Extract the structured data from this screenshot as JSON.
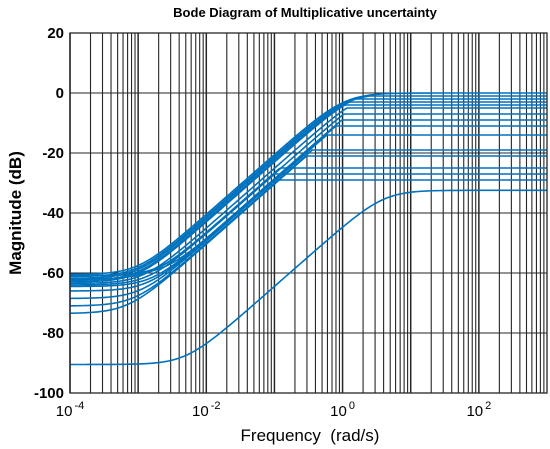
{
  "chart_data": {
    "type": "line",
    "title": "Bode Diagram of Multiplicative uncertainty",
    "xlabel": "Frequency  (rad/s)",
    "ylabel": "Magnitude (dB)",
    "x_scale": "log",
    "xlim": [
      0.0001,
      1000
    ],
    "ylim": [
      -100,
      20
    ],
    "x_ticks": [
      {
        "base": "10",
        "exp": "-4"
      },
      {
        "base": "10",
        "exp": "-2"
      },
      {
        "base": "10",
        "exp": "0"
      },
      {
        "base": "10",
        "exp": "2"
      }
    ],
    "x_tick_values": [
      0.0001,
      0.01,
      1,
      100
    ],
    "y_ticks": [
      "20",
      "0",
      "-20",
      "-40",
      "-60",
      "-80",
      "-100"
    ],
    "y_tick_values": [
      20,
      0,
      -20,
      -40,
      -60,
      -80,
      -100
    ],
    "grid": true,
    "series_color": "#0072BD",
    "grid_color": "#262626",
    "series": [
      {
        "low": -60.5,
        "high": 0,
        "wz": 0.001,
        "wp": 1.06
      },
      {
        "low": -61.2,
        "high": -1,
        "wz": 0.001,
        "wp": 1.12
      },
      {
        "low": -61.8,
        "high": -2,
        "wz": 0.001,
        "wp": 1.26
      },
      {
        "low": -62.5,
        "high": -3,
        "wz": 0.001,
        "wp": 1.41
      },
      {
        "low": -63.0,
        "high": -4,
        "wz": 0.001,
        "wp": 1.58
      },
      {
        "low": -63.5,
        "high": -5,
        "wz": 0.0012,
        "wp": 2.1
      },
      {
        "low": -64.0,
        "high": -7,
        "wz": 0.0014,
        "wp": 3.1
      },
      {
        "low": -64.5,
        "high": -9,
        "wz": 0.0016,
        "wp": 4.5
      },
      {
        "low": -66.0,
        "high": -11,
        "wz": 0.0014,
        "wp": 5.0
      },
      {
        "low": -68.5,
        "high": -14,
        "wz": 0.0011,
        "wp": 5.0
      },
      {
        "low": -71.0,
        "high": -19,
        "wz": 0.0009,
        "wp": 5.0
      },
      {
        "low": -73.5,
        "high": -21,
        "wz": 0.0007,
        "wp": 4.5
      },
      {
        "low": -62.0,
        "high": -25,
        "wz": 0.0017,
        "wp": 2.5
      },
      {
        "low": -61.0,
        "high": -27,
        "wz": 0.002,
        "wp": 2.0
      },
      {
        "low": -60.8,
        "high": -29,
        "wz": 0.0025,
        "wp": 1.8
      },
      {
        "low": -90.5,
        "high": -22,
        "wz": 0.005,
        "wp": 4.0
      }
    ]
  }
}
